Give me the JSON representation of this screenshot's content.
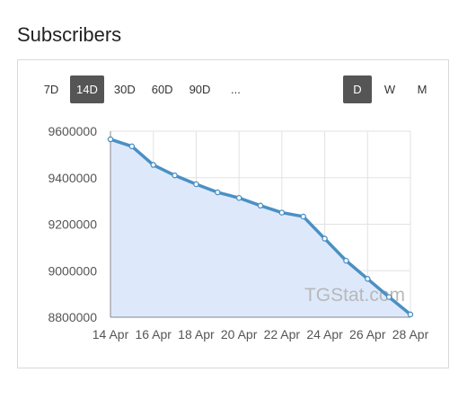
{
  "header": {
    "title": "Subscribers"
  },
  "controls": {
    "ranges": [
      {
        "label": "7D",
        "active": false
      },
      {
        "label": "14D",
        "active": true
      },
      {
        "label": "30D",
        "active": false
      },
      {
        "label": "60D",
        "active": false
      },
      {
        "label": "90D",
        "active": false
      },
      {
        "label": "...",
        "active": false
      }
    ],
    "granularity": [
      {
        "label": "D",
        "active": true
      },
      {
        "label": "W",
        "active": false
      },
      {
        "label": "M",
        "active": false
      }
    ]
  },
  "watermark": "TGStat.com",
  "colors": {
    "line": "#4a90c4",
    "area": "#dde9fb",
    "grid": "#e2e2e2",
    "active_button": "#555555"
  },
  "chart_data": {
    "type": "area",
    "title": "",
    "xlabel": "",
    "ylabel": "",
    "ylim": [
      8800000,
      9600000
    ],
    "yticks": [
      "8800000",
      "9000000",
      "9200000",
      "9400000",
      "9600000"
    ],
    "xticks": [
      "14 Apr",
      "16 Apr",
      "18 Apr",
      "20 Apr",
      "22 Apr",
      "24 Apr",
      "26 Apr",
      "28 Apr"
    ],
    "grid": true,
    "series": [
      {
        "x": [
          "14 Apr",
          "15 Apr",
          "16 Apr",
          "17 Apr",
          "18 Apr",
          "19 Apr",
          "20 Apr",
          "21 Apr",
          "22 Apr",
          "23 Apr",
          "24 Apr",
          "25 Apr",
          "26 Apr",
          "27 Apr",
          "28 Apr"
        ],
        "values": [
          9565000,
          9535000,
          9455000,
          9410000,
          9372000,
          9337000,
          9313000,
          9280000,
          9250000,
          9233000,
          9138000,
          9043000,
          8965000,
          8887000,
          8812000
        ]
      }
    ]
  }
}
